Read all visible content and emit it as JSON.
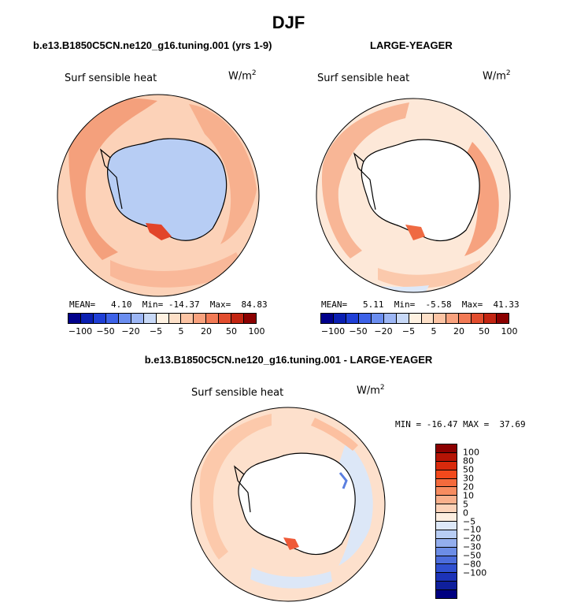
{
  "title": "DJF",
  "panels": [
    {
      "subtitle": "b.e13.B1850C5CN.ne120_g16.tuning.001 (yrs 1-9)",
      "variable": "Surf sensible heat",
      "units_base": "W/m",
      "units_exp": "2",
      "stats": "MEAN=   4.10  Min= -14.37  Max=  84.83"
    },
    {
      "subtitle": "LARGE-YEAGER",
      "variable": "Surf sensible heat",
      "units_base": "W/m",
      "units_exp": "2",
      "stats": "MEAN=   5.11  Min=  -5.58  Max=  41.33"
    },
    {
      "subtitle": "b.e13.B1850C5CN.ne120_g16.tuning.001 - LARGE-YEAGER",
      "variable": "Surf sensible heat",
      "units_base": "W/m",
      "units_exp": "2",
      "stats": "MIN = -16.47 MAX =  37.69"
    }
  ],
  "colorbar_h": {
    "colors": [
      "#00008b",
      "#0a1fb2",
      "#1f3fd6",
      "#3d62e8",
      "#6b8ef0",
      "#9cb6f5",
      "#c8d9f7",
      "#fff2e2",
      "#fde0c8",
      "#fcc4a4",
      "#f9a27e",
      "#f27a55",
      "#e24d2e",
      "#c32512",
      "#8b0000"
    ],
    "ticks": [
      "−100",
      "−50",
      "−20",
      "−5",
      "5",
      "20",
      "50",
      "100"
    ]
  },
  "colorbar_v": {
    "colors": [
      "#8b0000",
      "#b51405",
      "#d92a0c",
      "#f2491c",
      "#f46a3c",
      "#f78c60",
      "#f9b08c",
      "#fcd2b8",
      "#fdeee0",
      "#dde8f8",
      "#b8cdf4",
      "#93aeee",
      "#6c8de6",
      "#4c6ddc",
      "#3050d0",
      "#1c33b8",
      "#0f1f9c",
      "#000080"
    ],
    "ticks": [
      "100",
      "80",
      "50",
      "30",
      "20",
      "10",
      "5",
      "0",
      "−5",
      "−10",
      "−20",
      "−30",
      "−50",
      "−80",
      "−100"
    ]
  }
}
